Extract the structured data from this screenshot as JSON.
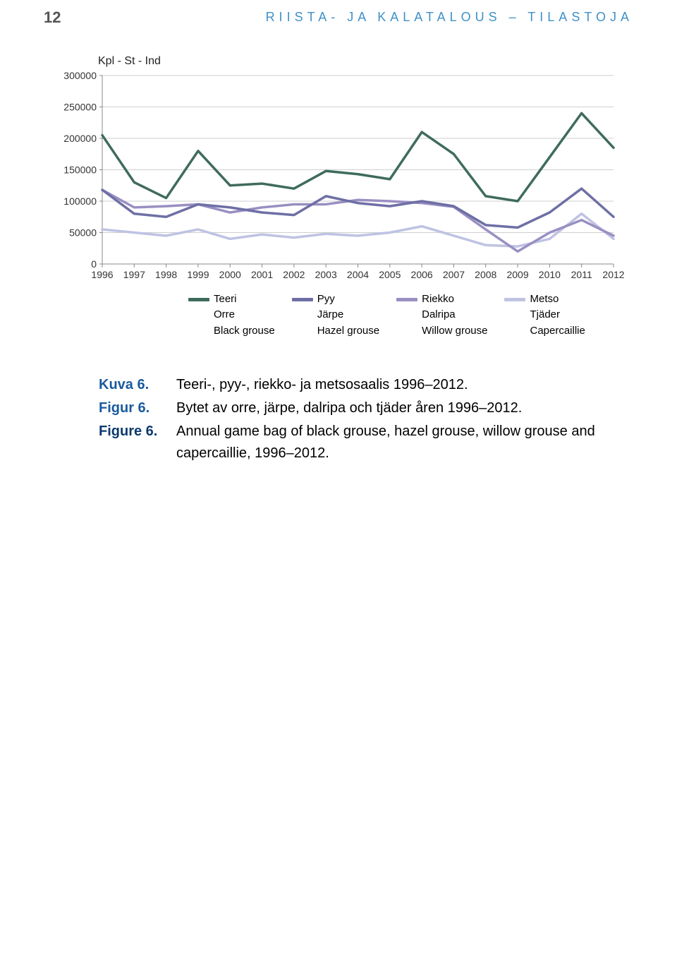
{
  "page_number": "12",
  "running_head": "RIISTA- JA KALATALOUS – TILASTOJA",
  "chart": {
    "type": "line",
    "y_axis_title": "Kpl - St - Ind",
    "years": [
      1996,
      1997,
      1998,
      1999,
      2000,
      2001,
      2002,
      2003,
      2004,
      2005,
      2006,
      2007,
      2008,
      2009,
      2010,
      2011,
      2012
    ],
    "xlim": [
      1996,
      2012
    ],
    "ylim": [
      0,
      300000
    ],
    "ytick_step": 50000,
    "ytick_labels": [
      "0",
      "50000",
      "100000",
      "150000",
      "200000",
      "250000",
      "300000"
    ],
    "background_color": "#ffffff",
    "grid_color": "#cfcfcf",
    "axis_color": "#888888",
    "tick_fontsize": 14,
    "line_width": 3.5,
    "series": [
      {
        "color": "#3f6b5d",
        "values": [
          205000,
          130000,
          105000,
          180000,
          125000,
          128000,
          120000,
          148000,
          143000,
          135000,
          210000,
          175000,
          108000,
          100000,
          170000,
          240000,
          185000
        ]
      },
      {
        "color": "#6e6fa5",
        "values": [
          118000,
          80000,
          75000,
          95000,
          90000,
          82000,
          78000,
          108000,
          97000,
          92000,
          100000,
          92000,
          62000,
          58000,
          82000,
          120000,
          75000
        ]
      },
      {
        "color": "#9a8fc2",
        "values": [
          118000,
          90000,
          92000,
          95000,
          82000,
          90000,
          95000,
          95000,
          102000,
          100000,
          97000,
          91000,
          55000,
          20000,
          50000,
          70000,
          45000
        ]
      },
      {
        "color": "#bfc3e2",
        "values": [
          55000,
          50000,
          45000,
          55000,
          40000,
          47000,
          42000,
          48000,
          45000,
          50000,
          60000,
          45000,
          30000,
          28000,
          40000,
          80000,
          40000
        ]
      }
    ],
    "legend": {
      "columns": [
        {
          "swatch": "#3f6b5d",
          "lines": [
            "Teeri",
            "Orre",
            "Black grouse"
          ]
        },
        {
          "swatch": "#6e6fa5",
          "lines": [
            "Pyy",
            "Järpe",
            "Hazel grouse"
          ]
        },
        {
          "swatch": "#9a8fc2",
          "lines": [
            "Riekko",
            "Dalripa",
            "Willow grouse"
          ]
        },
        {
          "swatch": "#bfc3e2",
          "lines": [
            "Metso",
            "Tjäder",
            "Capercaillie"
          ]
        }
      ]
    }
  },
  "captions": [
    {
      "label": "Kuva 6.",
      "color": "#1a5a9e",
      "text": "Teeri-, pyy-, riekko- ja metsosaalis 1996–2012."
    },
    {
      "label": "Figur 6.",
      "color": "#1a5a9e",
      "text": "Bytet av orre, järpe, dalripa och tjäder åren 1996–2012."
    },
    {
      "label": "Figure 6.",
      "color": "#0d3a6e",
      "text": "Annual game bag of black grouse, hazel grouse, willow grouse and capercaillie, 1996–2012."
    }
  ]
}
